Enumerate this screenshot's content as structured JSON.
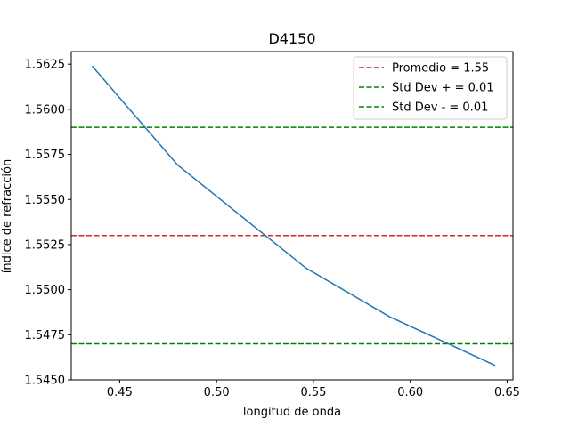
{
  "chart_data": {
    "type": "line",
    "title": "D4150",
    "xlabel": "longitud de onda",
    "ylabel": "índice de refracción",
    "xlim": [
      0.425,
      0.653
    ],
    "ylim": [
      1.545,
      1.5632
    ],
    "xticks": [
      "0.45",
      "0.50",
      "0.55",
      "0.60",
      "0.65"
    ],
    "xtick_values": [
      0.45,
      0.5,
      0.55,
      0.6,
      0.65
    ],
    "yticks": [
      "1.5450",
      "1.5475",
      "1.5500",
      "1.5525",
      "1.5550",
      "1.5575",
      "1.5600",
      "1.5625"
    ],
    "ytick_values": [
      1.545,
      1.5475,
      1.55,
      1.5525,
      1.555,
      1.5575,
      1.56,
      1.5625
    ],
    "grid": false,
    "legend_placement": "top-right",
    "series": [
      {
        "color": "#1f77b4",
        "x": [
          0.4358,
          0.48,
          0.5461,
          0.5893,
          0.6438
        ],
        "y": [
          1.5624,
          1.5569,
          1.5512,
          1.5485,
          1.5458
        ]
      }
    ],
    "hlines": [
      {
        "name": "Promedio = 1.55",
        "y": 1.553,
        "color": "#d62728",
        "style": "dashed"
      },
      {
        "name": "Std Dev + = 0.01",
        "y": 1.559,
        "color": "#008000",
        "style": "dashed"
      },
      {
        "name": "Std Dev - = 0.01",
        "y": 1.547,
        "color": "#008000",
        "style": "dashed"
      }
    ]
  }
}
